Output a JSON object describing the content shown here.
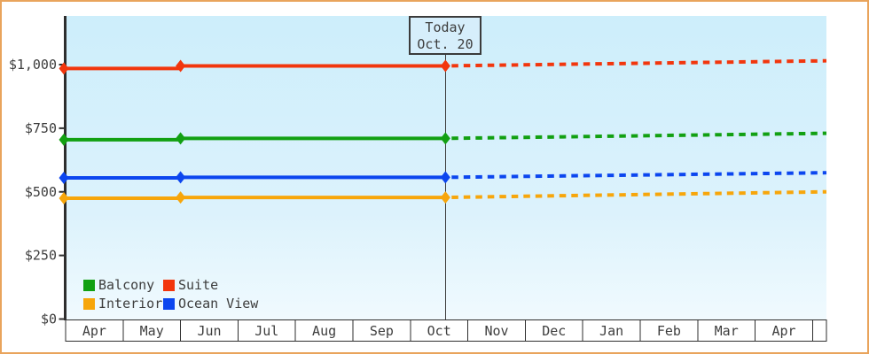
{
  "colors": {
    "page_border": "#e9a45c",
    "plot_bg_top": "#cdeefb",
    "plot_bg_bottom": "#f0fafe",
    "axis": "#2e2e2e",
    "text": "#3d3d3d",
    "today_box_bg": "#d6eefb"
  },
  "chart_data": {
    "type": "line",
    "xlabel": "",
    "ylabel": "",
    "ylim": [
      0,
      1190
    ],
    "y_axis": {
      "ticks": [
        {
          "value": 0,
          "label": "$0"
        },
        {
          "value": 250,
          "label": "$250"
        },
        {
          "value": 500,
          "label": "$500"
        },
        {
          "value": 750,
          "label": "$750"
        },
        {
          "value": 1000,
          "label": "$1,000"
        }
      ]
    },
    "x_axis": {
      "categories": [
        "Apr",
        "May",
        "Jun",
        "Jul",
        "Aug",
        "Sep",
        "Oct",
        "Nov",
        "Dec",
        "Jan",
        "Feb",
        "Mar",
        "Apr"
      ],
      "has_partial_trailing_cell": true
    },
    "today": {
      "line1": "Today",
      "line2": "Oct. 20",
      "month_index": 6,
      "month_fraction": 0.61
    },
    "series": [
      {
        "name": "Balcony",
        "color": "#12a012",
        "points": [
          {
            "month": "Apr",
            "value": 705
          },
          {
            "month": "Jun",
            "value": 710
          },
          {
            "month": "today",
            "value": 710
          }
        ],
        "projected_end_value": 730,
        "projected_style": "dashed"
      },
      {
        "name": "Suite",
        "color": "#f2360d",
        "points": [
          {
            "month": "Apr",
            "value": 985
          },
          {
            "month": "Jun",
            "value": 995
          },
          {
            "month": "today",
            "value": 995
          }
        ],
        "projected_end_value": 1015,
        "projected_style": "dashed"
      },
      {
        "name": "Interior",
        "color": "#f7a60b",
        "points": [
          {
            "month": "Apr",
            "value": 475
          },
          {
            "month": "Jun",
            "value": 478
          },
          {
            "month": "today",
            "value": 478
          }
        ],
        "projected_end_value": 500,
        "projected_style": "dashed"
      },
      {
        "name": "Ocean View",
        "color": "#0c46ef",
        "points": [
          {
            "month": "Apr",
            "value": 555
          },
          {
            "month": "Jun",
            "value": 557
          },
          {
            "month": "today",
            "value": 557
          }
        ],
        "projected_end_value": 575,
        "projected_style": "dashed"
      }
    ],
    "legend_order": [
      "Balcony",
      "Suite",
      "Interior",
      "Ocean View"
    ],
    "legend_position": "bottom-left-inside"
  }
}
